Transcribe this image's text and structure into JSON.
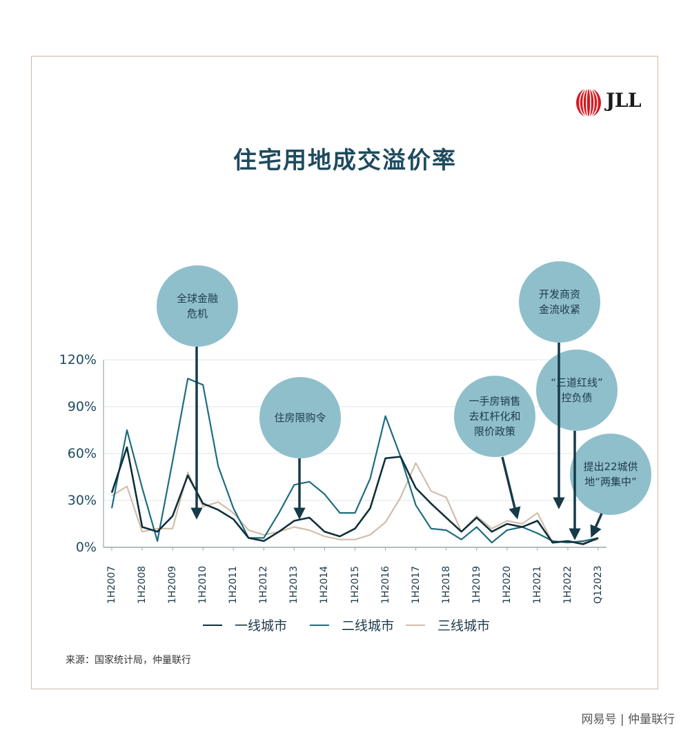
{
  "header": {
    "logo_text": "JLL"
  },
  "title": "住宅用地成交溢价率",
  "chart_data": {
    "type": "line",
    "title": "住宅用地成交溢价率",
    "x": [
      "1H2007",
      "2H2007",
      "1H2008",
      "2H2008",
      "1H2009",
      "2H2009",
      "1H2010",
      "2H2010",
      "1H2011",
      "2H2011",
      "1H2012",
      "2H2012",
      "1H2013",
      "2H2013",
      "1H2014",
      "2H2014",
      "1H2015",
      "2H2015",
      "1H2016",
      "2H2016",
      "1H2017",
      "2H2017",
      "1H2018",
      "2H2018",
      "1H2019",
      "2H2019",
      "1H2020",
      "2H2020",
      "1H2021",
      "2H2021",
      "1H2022",
      "2H2022",
      "Q12023"
    ],
    "tick_labels": [
      "1H2007",
      "1H2008",
      "1H2009",
      "1H2010",
      "1H2011",
      "1H2012",
      "1H2013",
      "1H2014",
      "1H2015",
      "1H2016",
      "1H2017",
      "1H2018",
      "1H2019",
      "1H2020",
      "1H2021",
      "1H2022",
      "Q12023"
    ],
    "ylim": [
      0,
      120
    ],
    "yticks": [
      "0%",
      "30%",
      "60%",
      "90%",
      "120%"
    ],
    "grid": true,
    "legend_position": "bottom",
    "series": [
      {
        "name": "一线城市",
        "color": "#0f2f3a",
        "values": [
          35,
          64,
          13,
          10,
          20,
          46,
          28,
          24,
          18,
          6,
          4,
          10,
          17,
          19,
          10,
          7,
          12,
          25,
          57,
          58,
          38,
          28,
          19,
          10,
          19,
          10,
          15,
          13,
          17,
          3,
          4,
          2,
          6
        ]
      },
      {
        "name": "二线城市",
        "color": "#1e6b7e",
        "values": [
          25,
          75,
          38,
          4,
          55,
          108,
          104,
          52,
          25,
          6,
          6,
          22,
          40,
          42,
          34,
          22,
          22,
          44,
          84,
          58,
          27,
          12,
          11,
          5,
          13,
          3,
          11,
          13,
          9,
          4,
          3,
          4,
          6
        ]
      },
      {
        "name": "三线城市",
        "color": "#d2bdab",
        "values": [
          33,
          39,
          10,
          12,
          12,
          48,
          26,
          29,
          22,
          11,
          8,
          10,
          13,
          11,
          7,
          5,
          5,
          8,
          16,
          32,
          54,
          36,
          32,
          10,
          20,
          12,
          17,
          15,
          22,
          3,
          4,
          3,
          5
        ]
      }
    ],
    "annotations": [
      {
        "text": "全球金融\n危机",
        "color": "#8fbfcb"
      },
      {
        "text": "住房限购令",
        "color": "#8fbfcb"
      },
      {
        "text": "一手房销售\n去杠杆化和\n限价政策",
        "color": "#8fbfcb"
      },
      {
        "text": "开发商资\n金流收紧",
        "color": "#8fbfcb"
      },
      {
        "text": "“三道红线”\n控负债",
        "color": "#8fbfcb"
      },
      {
        "text": "提出22城供\n地“两集中”",
        "color": "#8fbfcb"
      }
    ]
  },
  "source": "来源：国家统计局，仲量联行",
  "watermark": "网易号 | 仲量联行",
  "colors": {
    "bubble": "#8fbfcb",
    "arrow": "#163a48",
    "title": "#1e4a5e",
    "border": "#cdb8a6"
  }
}
